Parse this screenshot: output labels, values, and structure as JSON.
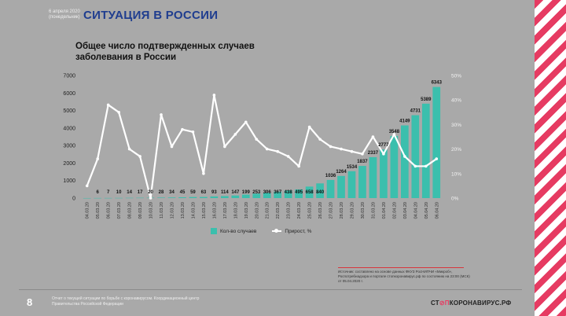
{
  "header": {
    "date": "6 апреля 2020 (понедельник)",
    "title": "СИТУАЦИЯ В РОССИИ"
  },
  "chart_data": {
    "type": "bar+line",
    "title": "Общее число подтвержденных случаев заболевания в России",
    "categories": [
      "04.03.20",
      "05.03.20",
      "06.03.20",
      "07.03.20",
      "08.03.20",
      "09.03.20",
      "10.03.20",
      "11.03.20",
      "12.03.20",
      "13.03.20",
      "14.03.20",
      "15.03.20",
      "16.03.20",
      "17.03.20",
      "18.03.20",
      "19.03.20",
      "20.03.20",
      "21.03.20",
      "22.03.20",
      "23.03.20",
      "24.03.20",
      "25.03.20",
      "26.03.20",
      "27.03.20",
      "28.03.20",
      "29.03.20",
      "30.03.20",
      "31.03.20",
      "01.04.20",
      "02.04.20",
      "03.04.20",
      "04.04.20",
      "05.04.20",
      "06.04.20"
    ],
    "series": [
      {
        "name": "Кол-во случаев",
        "type": "bar",
        "axis": "left",
        "color": "#3bbfad",
        "values": [
          3,
          6,
          7,
          10,
          14,
          17,
          20,
          28,
          34,
          45,
          59,
          63,
          93,
          114,
          147,
          199,
          253,
          306,
          367,
          438,
          495,
          658,
          840,
          1036,
          1264,
          1534,
          1837,
          2337,
          2777,
          3548,
          4149,
          4731,
          5389,
          6343
        ],
        "labels": [
          "",
          "6",
          "7",
          "10",
          "14",
          "17",
          "20",
          "28",
          "34",
          "45",
          "59",
          "63",
          "93",
          "114",
          "147",
          "199",
          "253",
          "306",
          "367",
          "438",
          "495",
          "658",
          "840",
          "1036",
          "1264",
          "1534",
          "1837",
          "2337",
          "2777",
          "3548",
          "4149",
          "4731",
          "5389",
          "6343"
        ]
      },
      {
        "name": "Прирост, %",
        "type": "line",
        "axis": "right",
        "color": "#ffffff",
        "values": [
          5,
          16,
          38,
          35,
          20,
          17,
          0,
          34,
          21,
          28,
          27,
          10,
          42,
          21,
          26,
          31,
          24,
          20,
          19,
          17,
          13,
          29,
          24,
          21,
          20,
          19,
          18,
          25,
          18,
          26,
          17,
          13,
          13,
          16
        ]
      }
    ],
    "ylim_left": [
      0,
      7000
    ],
    "yticks_left": [
      "0",
      "1000",
      "2000",
      "3000",
      "4000",
      "5000",
      "6000",
      "7000"
    ],
    "ylim_right": [
      0,
      50
    ],
    "yticks_right": [
      "0%",
      "10%",
      "20%",
      "30%",
      "40%",
      "50%"
    ],
    "legend_position": "bottom"
  },
  "source": "Источник: составлено на основе данных ФКУЗ РосНИПЧИ «Микроб», Роспотребнадзора и портале стопкоронавирус.рф по состоянию на 23:00 (МСК) от 05.04.2020 г.",
  "footer": {
    "page": "8",
    "text": "Отчет о текущей ситуации по борьбе с коронавирусом. Координационный центр Правительства Российской Федерации",
    "logo_pre": "СТ",
    "logo_mid": "⊘П",
    "logo_post": "КОРОНАВИРУС.РФ"
  }
}
